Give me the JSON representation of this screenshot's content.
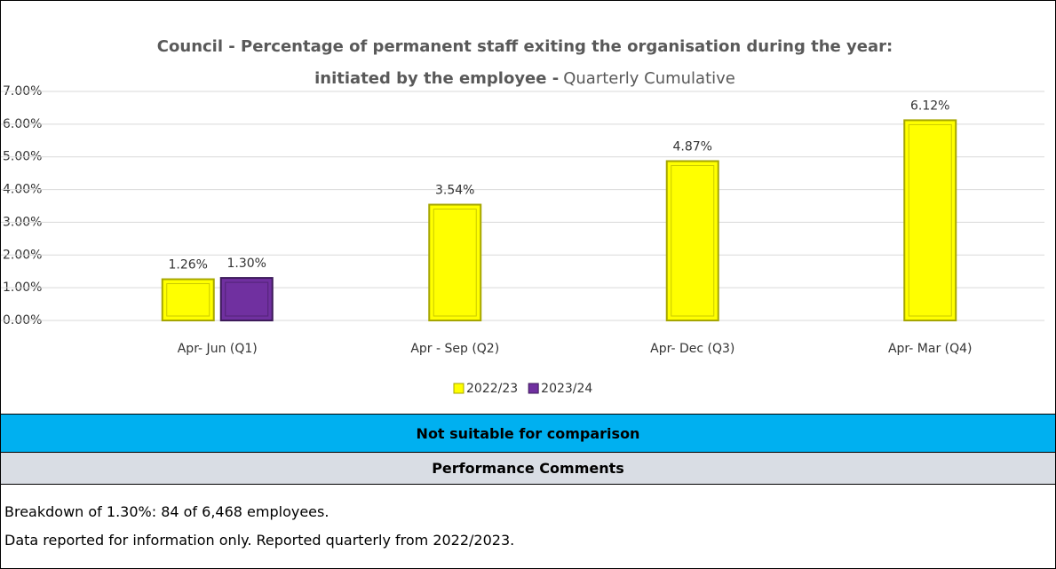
{
  "chart_data": {
    "type": "bar",
    "title_lines": [
      "Council - Percentage of permanent staff exiting the organisation during the year:",
      "initiated by the employee -"
    ],
    "subtitle": "Quarterly Cumulative",
    "categories": [
      "Apr- Jun  (Q1)",
      "Apr - Sep  (Q2)",
      "Apr- Dec  (Q3)",
      "Apr- Mar  (Q4)"
    ],
    "series": [
      {
        "name": "2022/23",
        "color": "#ffff00",
        "values": [
          1.26,
          3.54,
          4.87,
          6.12
        ],
        "value_labels": [
          "1.26%",
          "3.54%",
          "4.87%",
          "6.12%"
        ]
      },
      {
        "name": "2023/24",
        "color": "#7030a0",
        "values": [
          1.3,
          null,
          null,
          null
        ],
        "value_labels": [
          "1.30%",
          null,
          null,
          null
        ]
      }
    ],
    "ylim": [
      0,
      7
    ],
    "yticks": [
      {
        "value": 0,
        "label": "0.00%"
      },
      {
        "value": 1,
        "label": "1.00%"
      },
      {
        "value": 2,
        "label": "2.00%"
      },
      {
        "value": 3,
        "label": "3.00%"
      },
      {
        "value": 4,
        "label": "4.00%"
      },
      {
        "value": 5,
        "label": "5.00%"
      },
      {
        "value": 6,
        "label": "6.00%"
      },
      {
        "value": 7,
        "label": "7.00%"
      }
    ],
    "grid": true,
    "legend": "bottom"
  },
  "comparison_banner": "Not suitable for comparison",
  "comments_header": "Performance Comments",
  "comments": [
    "Breakdown of 1.30%:  84 of 6,468 employees.",
    "Data reported for information only. Reported quarterly from 2022/2023."
  ]
}
